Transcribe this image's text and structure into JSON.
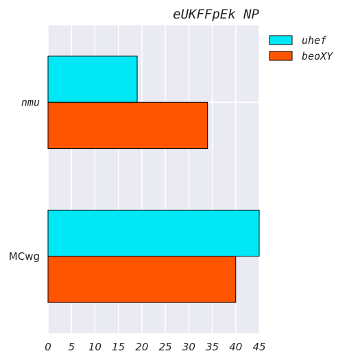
{
  "chart_data": {
    "type": "bar",
    "orientation": "horizontal",
    "title": "eUKFFpEk NP",
    "xlabel": "",
    "ylabel": "",
    "categories": [
      "nmu",
      "MCwg"
    ],
    "series": [
      {
        "name": "uhef",
        "values": [
          19,
          45
        ],
        "color": "#00e8f5"
      },
      {
        "name": "beoXY",
        "values": [
          34,
          40
        ],
        "color": "#ff5500"
      }
    ],
    "xlim": [
      0,
      45
    ],
    "xticks": [
      0,
      5,
      10,
      15,
      20,
      25,
      30,
      35,
      40,
      45
    ],
    "grid": true,
    "legend_position": "outside-top-right"
  }
}
